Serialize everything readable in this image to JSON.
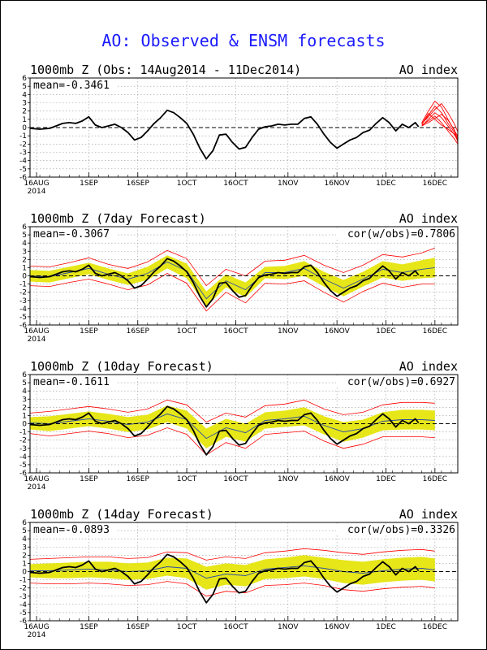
{
  "page_title": "AO: Observed & ENSM forecasts",
  "colors": {
    "title": "#1a1aff",
    "observed": "#000000",
    "spread_fill": "#e6e619",
    "ensemble_range": "#ff0000",
    "ensemble_mean": "#2f4f9f",
    "forecast_members": "#ff0000",
    "grid": "#9a9a9a"
  },
  "chart_data": [
    {
      "type": "line",
      "title": "1000mb Z (Obs: 14Aug2014 - 11Dec2014)",
      "right_label": "AO index",
      "mean_label": "mean=-0.3461",
      "cor_label": "",
      "ylim": [
        -6,
        6
      ],
      "yticks": [
        6,
        5,
        4,
        3,
        2,
        1,
        0,
        -1,
        -2,
        -3,
        -4,
        -5,
        -6
      ],
      "x_ticks": [
        {
          "day": 2,
          "label": "16AUG",
          "sub": "2014"
        },
        {
          "day": 18,
          "label": "1SEP",
          "sub": ""
        },
        {
          "day": 33,
          "label": "16SEP",
          "sub": ""
        },
        {
          "day": 48,
          "label": "1OCT",
          "sub": ""
        },
        {
          "day": 63,
          "label": "16OCT",
          "sub": ""
        },
        {
          "day": 79,
          "label": "1NOV",
          "sub": ""
        },
        {
          "day": 94,
          "label": "16NOV",
          "sub": ""
        },
        {
          "day": 109,
          "label": "1DEC",
          "sub": ""
        },
        {
          "day": 124,
          "label": "16DEC",
          "sub": ""
        }
      ],
      "xlim": [
        0,
        131
      ]
    },
    {
      "type": "line",
      "title": "1000mb Z (7day Forecast)",
      "right_label": "AO index",
      "mean_label": "mean=-0.3067",
      "cor_label": "cor(w/obs)=0.7806",
      "ylim": [
        -6,
        6
      ]
    },
    {
      "type": "line",
      "title": "1000mb Z (10day Forecast)",
      "right_label": "AO index",
      "mean_label": "mean=-0.1611",
      "cor_label": "cor(w/obs)=0.6927",
      "ylim": [
        -6,
        6
      ]
    },
    {
      "type": "line",
      "title": "1000mb Z (14day Forecast)",
      "right_label": "AO index",
      "mean_label": "mean=-0.0893",
      "cor_label": "cor(w/obs)=0.3326",
      "ylim": [
        -6,
        6
      ]
    }
  ],
  "observed": {
    "day": [
      0,
      3,
      6,
      8,
      10,
      12,
      14,
      16,
      18,
      20,
      22,
      24,
      26,
      28,
      30,
      32,
      34,
      36,
      38,
      40,
      42,
      44,
      46,
      48,
      50,
      52,
      54,
      56,
      58,
      60,
      62,
      64,
      66,
      68,
      70,
      72,
      74,
      76,
      78,
      80,
      82,
      84,
      86,
      88,
      90,
      92,
      94,
      96,
      98,
      100,
      102,
      104,
      106,
      108,
      110,
      112,
      114,
      116,
      118,
      119
    ],
    "ao": [
      -0.1,
      -0.2,
      -0.1,
      0.2,
      0.5,
      0.6,
      0.5,
      0.8,
      1.3,
      0.3,
      0.0,
      0.2,
      0.4,
      0.0,
      -0.6,
      -1.5,
      -1.2,
      -0.4,
      0.5,
      1.2,
      2.1,
      1.8,
      1.2,
      0.5,
      -0.8,
      -2.5,
      -3.8,
      -2.8,
      -0.9,
      -0.8,
      -1.8,
      -2.6,
      -2.4,
      -1.2,
      -0.2,
      0.1,
      0.2,
      0.4,
      0.3,
      0.4,
      0.4,
      1.1,
      1.3,
      0.4,
      -0.8,
      -1.8,
      -2.5,
      -2.0,
      -1.5,
      -1.2,
      -0.6,
      -0.3,
      0.5,
      1.2,
      0.6,
      -0.4,
      0.4,
      0.0,
      0.6,
      0.1
    ]
  },
  "forecast_members": {
    "day": [
      120,
      122,
      124,
      126,
      128,
      130,
      131
    ],
    "members": [
      [
        0.4,
        1.5,
        2.6,
        1.8,
        0.5,
        -0.6,
        -1.2
      ],
      [
        0.2,
        1.0,
        1.8,
        1.2,
        0.2,
        -0.9,
        -1.6
      ],
      [
        0.6,
        2.0,
        3.2,
        2.5,
        1.0,
        -0.4,
        -1.0
      ],
      [
        0.3,
        0.8,
        1.4,
        0.6,
        -0.4,
        -1.4,
        -2.0
      ],
      [
        0.5,
        1.3,
        2.2,
        2.9,
        1.8,
        0.4,
        -0.5
      ],
      [
        0.4,
        1.7,
        1.0,
        0.3,
        -0.2,
        -0.8,
        -1.4
      ],
      [
        0.2,
        0.6,
        1.1,
        1.6,
        0.9,
        -0.3,
        -1.8
      ]
    ]
  },
  "ensemble": [
    {
      "day": [
        0,
        6,
        12,
        18,
        24,
        30,
        36,
        42,
        48,
        54,
        60,
        66,
        72,
        78,
        84,
        90,
        96,
        102,
        108,
        114,
        120,
        124
      ],
      "mean": [
        0.0,
        -0.1,
        0.4,
        0.9,
        0.2,
        -0.4,
        0.3,
        1.7,
        0.6,
        -2.8,
        -0.6,
        -1.7,
        0.4,
        0.4,
        0.9,
        -0.4,
        -1.5,
        -0.4,
        0.8,
        0.4,
        0.8,
        1.0
      ],
      "sd_lo": [
        -0.7,
        -0.8,
        -0.3,
        0.2,
        -0.5,
        -1.1,
        -0.5,
        0.9,
        -0.3,
        -3.7,
        -1.4,
        -2.6,
        -0.3,
        -0.4,
        0.0,
        -1.3,
        -2.5,
        -1.3,
        -0.2,
        -0.6,
        -0.3,
        -0.2
      ],
      "sd_hi": [
        0.7,
        0.6,
        1.1,
        1.6,
        0.9,
        0.3,
        1.1,
        2.5,
        1.5,
        -1.9,
        0.2,
        -0.8,
        1.1,
        1.2,
        1.8,
        0.5,
        -0.5,
        0.5,
        1.8,
        1.4,
        1.9,
        2.2
      ],
      "lo": [
        -1.2,
        -1.3,
        -0.8,
        -0.4,
        -1.0,
        -1.7,
        -1.1,
        0.3,
        -0.9,
        -4.3,
        -2.0,
        -3.3,
        -0.9,
        -1.0,
        -0.6,
        -2.0,
        -3.2,
        -1.9,
        -0.9,
        -1.4,
        -1.0,
        -1.0
      ],
      "hi": [
        1.2,
        1.1,
        1.6,
        2.2,
        1.4,
        0.9,
        1.7,
        3.1,
        2.1,
        -1.2,
        0.8,
        0.0,
        1.8,
        1.9,
        2.5,
        1.3,
        0.4,
        1.3,
        2.6,
        2.3,
        2.8,
        3.4
      ]
    },
    {
      "day": [
        0,
        6,
        12,
        18,
        24,
        30,
        36,
        42,
        48,
        54,
        60,
        66,
        72,
        78,
        84,
        90,
        96,
        102,
        108,
        114,
        120,
        124
      ],
      "mean": [
        0.1,
        0.0,
        0.3,
        0.6,
        0.3,
        -0.1,
        0.2,
        1.2,
        0.5,
        -1.8,
        -0.5,
        -1.1,
        0.4,
        0.6,
        0.9,
        -0.2,
        -1.0,
        -0.6,
        0.3,
        0.5,
        0.5,
        0.4
      ],
      "sd_lo": [
        -0.7,
        -0.9,
        -0.6,
        -0.3,
        -0.6,
        -1.0,
        -0.7,
        0.2,
        -0.6,
        -3.0,
        -1.6,
        -2.2,
        -0.6,
        -0.4,
        -0.2,
        -1.3,
        -2.2,
        -1.7,
        -0.8,
        -0.7,
        -0.7,
        -0.8
      ],
      "sd_hi": [
        0.8,
        0.9,
        1.2,
        1.5,
        1.2,
        0.8,
        1.1,
        2.2,
        1.6,
        -0.6,
        0.6,
        0.0,
        1.4,
        1.6,
        2.0,
        0.9,
        0.2,
        0.5,
        1.4,
        1.7,
        1.7,
        1.6
      ],
      "lo": [
        -1.2,
        -1.5,
        -1.2,
        -0.9,
        -1.2,
        -1.7,
        -1.4,
        -0.5,
        -1.3,
        -3.8,
        -2.3,
        -3.0,
        -1.3,
        -1.1,
        -0.9,
        -2.1,
        -3.0,
        -2.5,
        -1.6,
        -1.6,
        -1.6,
        -1.7
      ],
      "hi": [
        1.3,
        1.5,
        1.8,
        2.1,
        1.8,
        1.4,
        1.8,
        2.9,
        2.3,
        0.2,
        1.3,
        0.8,
        2.2,
        2.4,
        2.9,
        1.8,
        1.1,
        1.4,
        2.3,
        2.6,
        2.6,
        2.5
      ]
    },
    {
      "day": [
        0,
        6,
        12,
        18,
        24,
        30,
        36,
        42,
        48,
        54,
        60,
        66,
        72,
        78,
        84,
        90,
        96,
        102,
        108,
        114,
        120,
        124
      ],
      "mean": [
        0.1,
        0.1,
        0.2,
        0.3,
        0.2,
        0.0,
        0.1,
        0.6,
        0.4,
        -0.8,
        -0.3,
        -0.5,
        0.3,
        0.5,
        0.7,
        0.4,
        0.0,
        -0.2,
        0.1,
        0.3,
        0.4,
        0.2
      ],
      "sd_lo": [
        -0.7,
        -0.8,
        -0.8,
        -0.7,
        -0.8,
        -1.0,
        -0.9,
        -0.5,
        -0.8,
        -2.2,
        -1.6,
        -1.8,
        -0.9,
        -0.8,
        -0.6,
        -0.9,
        -1.4,
        -1.6,
        -1.3,
        -1.1,
        -1.0,
        -1.2
      ],
      "sd_hi": [
        0.9,
        1.0,
        1.1,
        1.2,
        1.2,
        1.0,
        1.1,
        1.7,
        1.6,
        0.6,
        1.0,
        0.8,
        1.5,
        1.7,
        2.0,
        1.7,
        1.4,
        1.2,
        1.5,
        1.7,
        1.8,
        1.6
      ],
      "lo": [
        -1.4,
        -1.5,
        -1.5,
        -1.4,
        -1.5,
        -1.7,
        -1.6,
        -1.2,
        -1.5,
        -3.0,
        -2.4,
        -2.6,
        -1.7,
        -1.6,
        -1.4,
        -1.7,
        -2.2,
        -2.4,
        -2.1,
        -1.9,
        -1.8,
        -2.0
      ],
      "hi": [
        1.5,
        1.6,
        1.7,
        1.8,
        1.8,
        1.6,
        1.7,
        2.4,
        2.3,
        1.4,
        1.8,
        1.6,
        2.3,
        2.5,
        2.8,
        2.6,
        2.3,
        2.1,
        2.4,
        2.6,
        2.7,
        2.5
      ]
    }
  ]
}
